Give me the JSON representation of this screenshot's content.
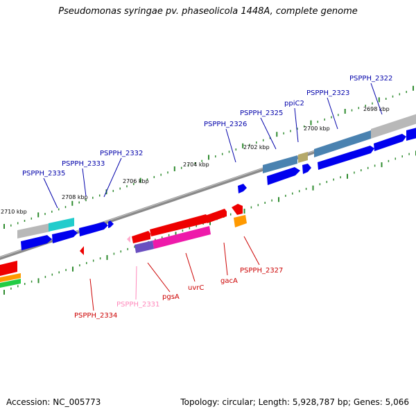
{
  "title": "Pseudomonas syringae pv. phaseolicola 1448A, complete genome",
  "footer": {
    "accession": "Accession: NC_005773",
    "summary": "Topology: circular; Length: 5,928,787 bp; Genes: 5,066"
  },
  "kbp_labels": [
    "2698 kbp",
    "2700 kbp",
    "2702 kbp",
    "2704 kbp",
    "2706 kbp",
    "2708 kbp",
    "2710 kbp"
  ],
  "top_genes": [
    "PSPPH_2322",
    "PSPPH_2323",
    "ppiC2",
    "PSPPH_2325",
    "PSPPH_2326",
    "PSPPH_2332",
    "PSPPH_2333",
    "PSPPH_2335"
  ],
  "bottom_genes": [
    "PSPPH_2327",
    "gacA",
    "uvrC",
    "pgsA",
    "PSPPH_2331",
    "PSPPH_2334"
  ],
  "colors": {
    "forward_cds": "#0000ee",
    "reverse_cds": "#ee0000",
    "top_label": "#0000aa",
    "bottom_label": "#cc0000",
    "pseudo_label": "#ff88bb",
    "backbone": "#7f7f7f",
    "tick": "#2e8b2e"
  }
}
